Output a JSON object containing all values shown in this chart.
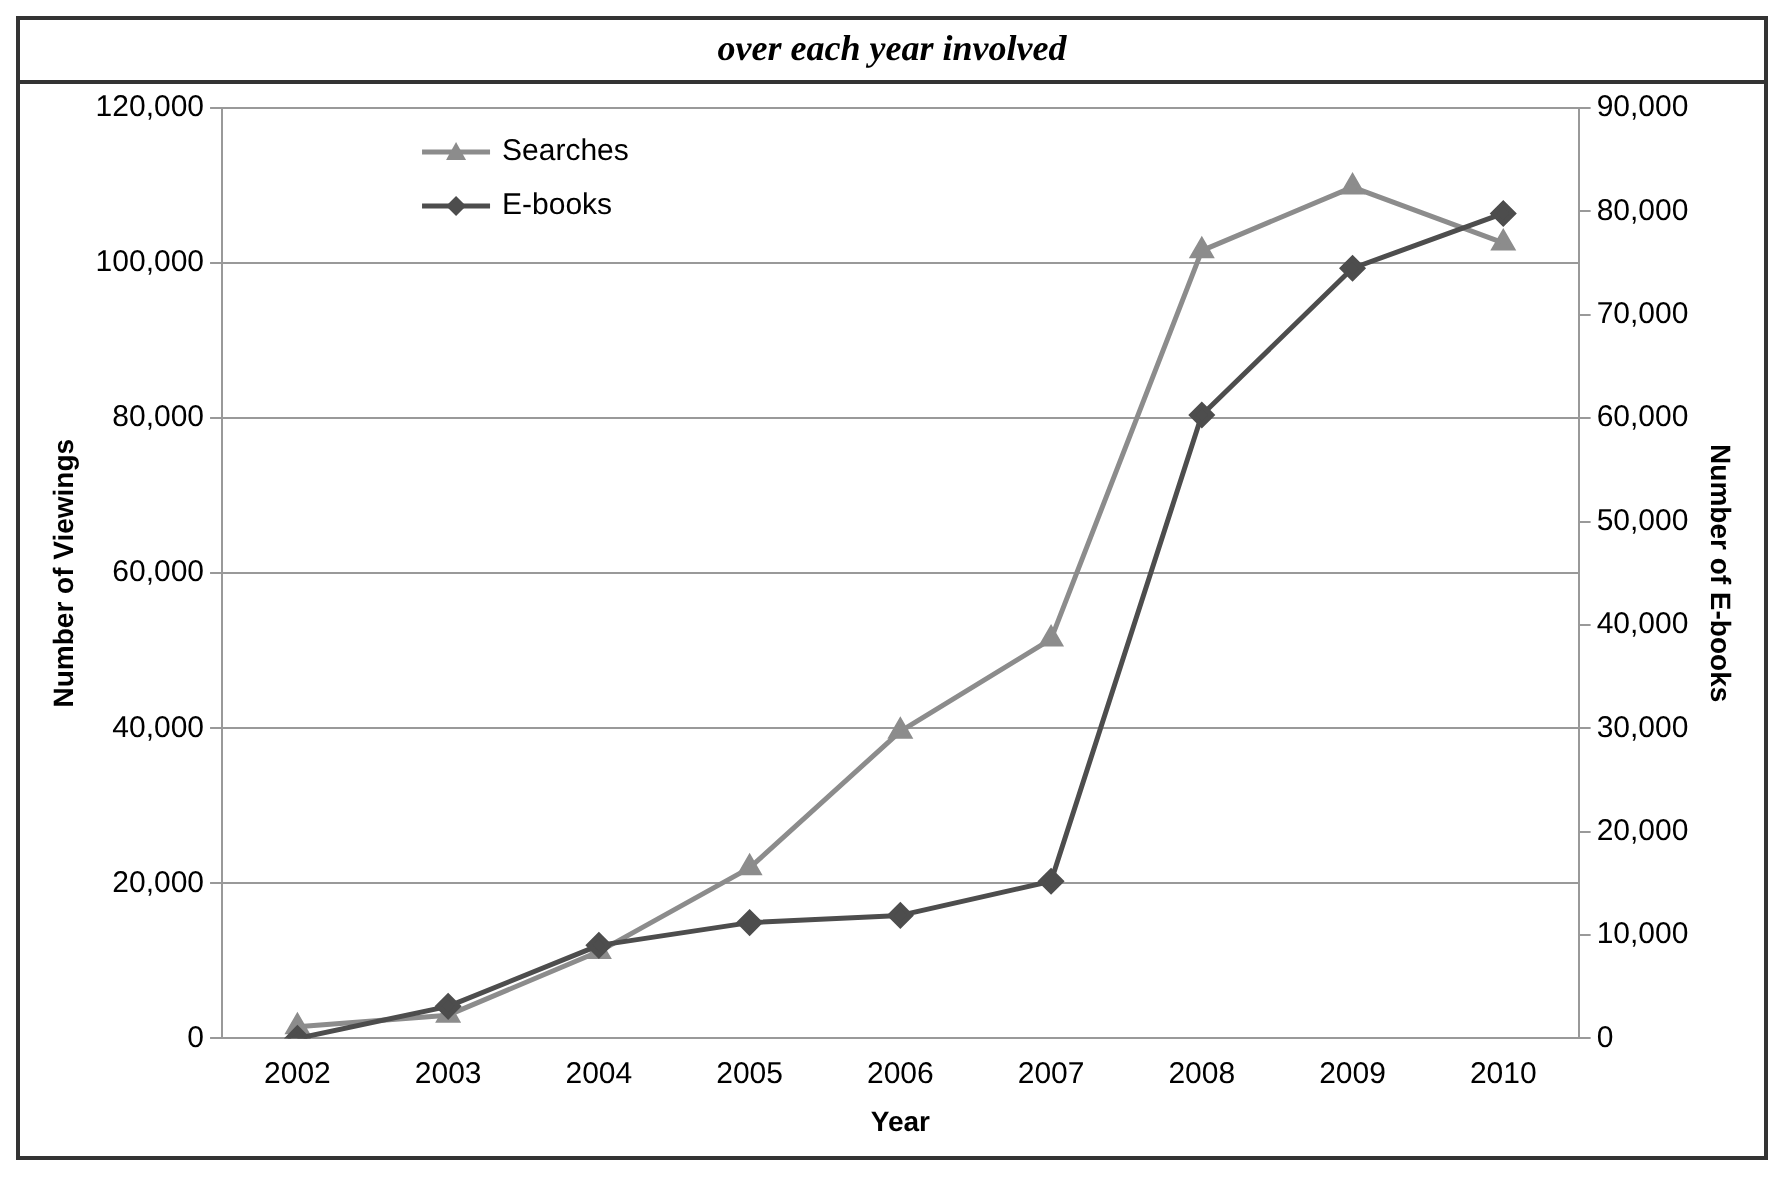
{
  "chart_data": {
    "type": "line",
    "title": "over each year involved",
    "xlabel": "Year",
    "ylabel": "Number of Viewings",
    "y2label": "Number of E-books",
    "categories": [
      "2002",
      "2003",
      "2004",
      "2005",
      "2006",
      "2007",
      "2008",
      "2009",
      "2010"
    ],
    "series": [
      {
        "name": "Searches",
        "color": "#8c8c8c",
        "marker": "triangle",
        "values": [
          1500,
          3000,
          11200,
          22000,
          39600,
          51500,
          101600,
          109800,
          102600
        ]
      },
      {
        "name": "E-books",
        "color": "#4d4d4d",
        "marker": "diamond",
        "axis": "y2",
        "values": [
          0,
          3100,
          9000,
          11200,
          11900,
          15200,
          60300,
          74500,
          79800
        ]
      }
    ],
    "ylim": [
      0,
      120000
    ],
    "yticks": [
      {
        "value": 0,
        "label": "0"
      },
      {
        "value": 20000,
        "label": "20,000"
      },
      {
        "value": 40000,
        "label": "40,000"
      },
      {
        "value": 60000,
        "label": "60,000"
      },
      {
        "value": 80000,
        "label": "80,000"
      },
      {
        "value": 100000,
        "label": "100,000"
      },
      {
        "value": 120000,
        "label": "120,000"
      }
    ],
    "y2lim": [
      0,
      90000
    ],
    "y2ticks": [
      {
        "value": 0,
        "label": "0"
      },
      {
        "value": 10000,
        "label": "10,000"
      },
      {
        "value": 20000,
        "label": "20,000"
      },
      {
        "value": 30000,
        "label": "30,000"
      },
      {
        "value": 40000,
        "label": "40,000"
      },
      {
        "value": 50000,
        "label": "50,000"
      },
      {
        "value": 60000,
        "label": "60,000"
      },
      {
        "value": 70000,
        "label": "70,000"
      },
      {
        "value": 80000,
        "label": "80,000"
      },
      {
        "value": 90000,
        "label": "90,000"
      }
    ],
    "grid": "y",
    "legend": "top left",
    "line_style": "solid"
  }
}
